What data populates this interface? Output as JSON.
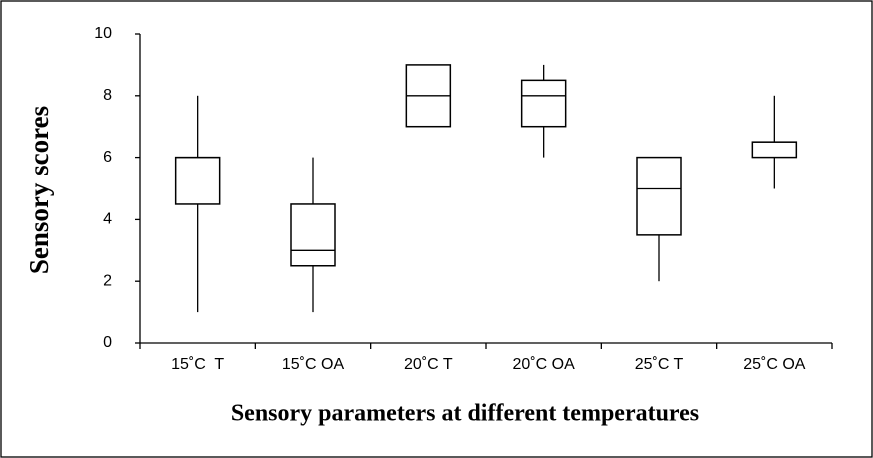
{
  "chart_data": {
    "type": "box",
    "xlabel": "Sensory parameters at different temperatures",
    "ylabel": "Sensory scores",
    "categories": [
      "15˚C  T",
      "15˚C OA",
      "20˚C T",
      "20˚C OA",
      "25˚C T",
      "25˚C OA"
    ],
    "min": [
      1,
      1,
      7,
      6,
      2,
      5
    ],
    "q1": [
      4.5,
      2.5,
      7,
      7,
      3.5,
      6
    ],
    "median": [
      6,
      3,
      8,
      8,
      5,
      6.5
    ],
    "q3": [
      6,
      4.5,
      9,
      8.5,
      6,
      6.5
    ],
    "max": [
      8,
      6,
      9,
      9,
      6,
      8
    ],
    "color": "#000000",
    "ylim": [
      0,
      10
    ],
    "yticks": [
      0,
      2,
      4,
      6,
      8,
      10
    ],
    "grid": false
  }
}
